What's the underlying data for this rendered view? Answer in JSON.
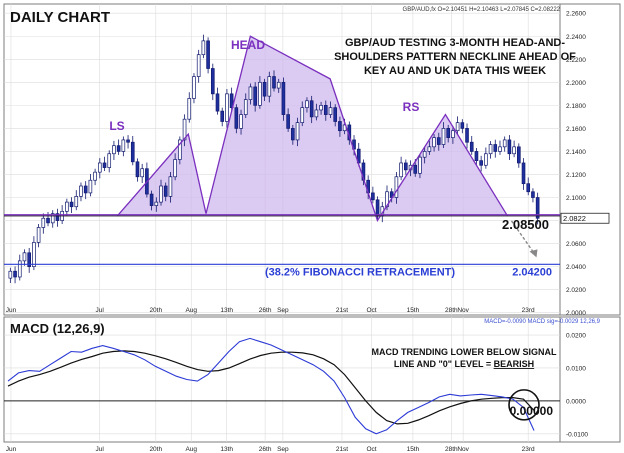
{
  "chart_data": [
    {
      "type": "candlestick",
      "title": "DAILY CHART",
      "ticker_info": "GBP/AUD,fx O=2.10451 H=2.10463 L=2.07845 C=2.08222",
      "annotation": "GBP/AUD TESTING 3-MONTH HEAD-AND-SHOULDERS PATTERN NECKLINE AHEAD OF KEY AU AND UK DATA THIS WEEK",
      "annotation_lines": [
        "GBP/AUD TESTING 3-MONTH HEAD-AND-",
        "SHOULDERS PATTERN NECKLINE AHEAD OF",
        "KEY AU AND UK DATA THIS WEEK"
      ],
      "pattern_labels": {
        "left_shoulder": "LS",
        "head": "HEAD",
        "right_shoulder": "RS"
      },
      "pattern_points": [
        {
          "x": "Jul 08",
          "y": 2.084
        },
        {
          "x": "Aug 01",
          "y": 2.155
        },
        {
          "x": "Aug 07",
          "y": 2.086
        },
        {
          "x": "Aug 22",
          "y": 2.24
        },
        {
          "x": "Sep 18",
          "y": 2.203
        },
        {
          "x": "Oct 04",
          "y": 2.08
        },
        {
          "x": "Oct 27",
          "y": 2.172
        },
        {
          "x": "Nov 17",
          "y": 2.084
        }
      ],
      "neckline": {
        "label": "2.08500",
        "value": 2.085
      },
      "fibonacci": {
        "label": "(38.2% FIBONACCI RETRACEMENT)",
        "value_label": "2.04200",
        "value": 2.042
      },
      "last_price_label": "2.0822",
      "y_ticks": [
        "2.2600",
        "2.2400",
        "2.2200",
        "2.2000",
        "2.1800",
        "2.1600",
        "2.1400",
        "2.1200",
        "2.1000",
        "2.0800",
        "2.0600",
        "2.0400",
        "2.0200",
        "2.0000"
      ],
      "ylim": [
        1.998,
        2.268
      ],
      "x_ticks": [
        "Jun",
        "Jul",
        "20th",
        "Aug",
        "13th",
        "26th",
        "Sep",
        "21st",
        "Oct",
        "15th",
        "28th",
        "Nov",
        "23rd"
      ],
      "closes": [
        2.036,
        2.031,
        2.045,
        2.052,
        2.04,
        2.061,
        2.074,
        2.082,
        2.078,
        2.086,
        2.08,
        2.088,
        2.096,
        2.092,
        2.101,
        2.11,
        2.104,
        2.115,
        2.122,
        2.13,
        2.126,
        2.138,
        2.145,
        2.14,
        2.15,
        2.148,
        2.131,
        2.118,
        2.125,
        2.103,
        2.093,
        2.096,
        2.11,
        2.101,
        2.118,
        2.133,
        2.15,
        2.168,
        2.186,
        2.205,
        2.224,
        2.236,
        2.212,
        2.19,
        2.175,
        2.166,
        2.19,
        2.178,
        2.16,
        2.172,
        2.185,
        2.196,
        2.18,
        2.2,
        2.188,
        2.205,
        2.195,
        2.2,
        2.172,
        2.16,
        2.15,
        2.165,
        2.178,
        2.184,
        2.17,
        2.176,
        2.18,
        2.172,
        2.178,
        2.166,
        2.158,
        2.163,
        2.15,
        2.142,
        2.13,
        2.115,
        2.104,
        2.098,
        2.084,
        2.092,
        2.105,
        2.1,
        2.118,
        2.13,
        2.124,
        2.128,
        2.121,
        2.135,
        2.14,
        2.144,
        2.152,
        2.146,
        2.16,
        2.152,
        2.158,
        2.165,
        2.16,
        2.148,
        2.14,
        2.132,
        2.128,
        2.138,
        2.146,
        2.14,
        2.144,
        2.15,
        2.138,
        2.144,
        2.13,
        2.112,
        2.105,
        2.1,
        2.082
      ]
    },
    {
      "type": "line",
      "title": "MACD (12,26,9)",
      "ticker_info": "MACD=-0.0090 MACD sig=-0.0029 12,26,9",
      "annotation": "MACD TRENDING LOWER BELOW SIGNAL LINE AND \"0\" LEVEL = BEARISH",
      "annotation_line1": "MACD TRENDING LOWER BELOW SIGNAL",
      "annotation_line2_prefix": "LINE AND \"0\" LEVEL = ",
      "annotation_emphasis": "BEARISH",
      "zero_label": "0.00000",
      "y_ticks": [
        "0.0200",
        "0.0100",
        "0.0000",
        "-0.0100"
      ],
      "ylim": [
        -0.0125,
        0.0255
      ],
      "series": [
        {
          "name": "MACD",
          "color": "#2c3ad6",
          "values": [
            0.006,
            0.0085,
            0.0092,
            0.009,
            0.011,
            0.013,
            0.015,
            0.0148,
            0.016,
            0.0168,
            0.016,
            0.015,
            0.014,
            0.0125,
            0.0105,
            0.009,
            0.0075,
            0.0065,
            0.006,
            0.008,
            0.0115,
            0.015,
            0.018,
            0.019,
            0.018,
            0.017,
            0.0155,
            0.014,
            0.0125,
            0.011,
            0.009,
            0.006,
            0.001,
            -0.005,
            -0.0085,
            -0.01,
            -0.0088,
            -0.006,
            -0.0035,
            -0.002,
            -0.0005,
            0.0012,
            0.002,
            0.0015,
            0.0018,
            0.002,
            0.0016,
            0.0012,
            0.0005,
            -0.002,
            -0.009
          ]
        },
        {
          "name": "MACD sig",
          "color": "#111111",
          "values": [
            0.0045,
            0.006,
            0.0072,
            0.008,
            0.009,
            0.0102,
            0.0115,
            0.0126,
            0.0135,
            0.0145,
            0.015,
            0.0152,
            0.015,
            0.0145,
            0.0137,
            0.0128,
            0.0117,
            0.0105,
            0.0095,
            0.009,
            0.0092,
            0.01,
            0.0113,
            0.0127,
            0.0138,
            0.0145,
            0.0148,
            0.0148,
            0.0146,
            0.014,
            0.0128,
            0.011,
            0.008,
            0.004,
            0.0,
            -0.0035,
            -0.006,
            -0.007,
            -0.0068,
            -0.0058,
            -0.0045,
            -0.003,
            -0.0018,
            -0.0008,
            0.0,
            0.0005,
            0.0008,
            0.001,
            0.001,
            0.0005,
            -0.0029
          ]
        }
      ]
    }
  ]
}
